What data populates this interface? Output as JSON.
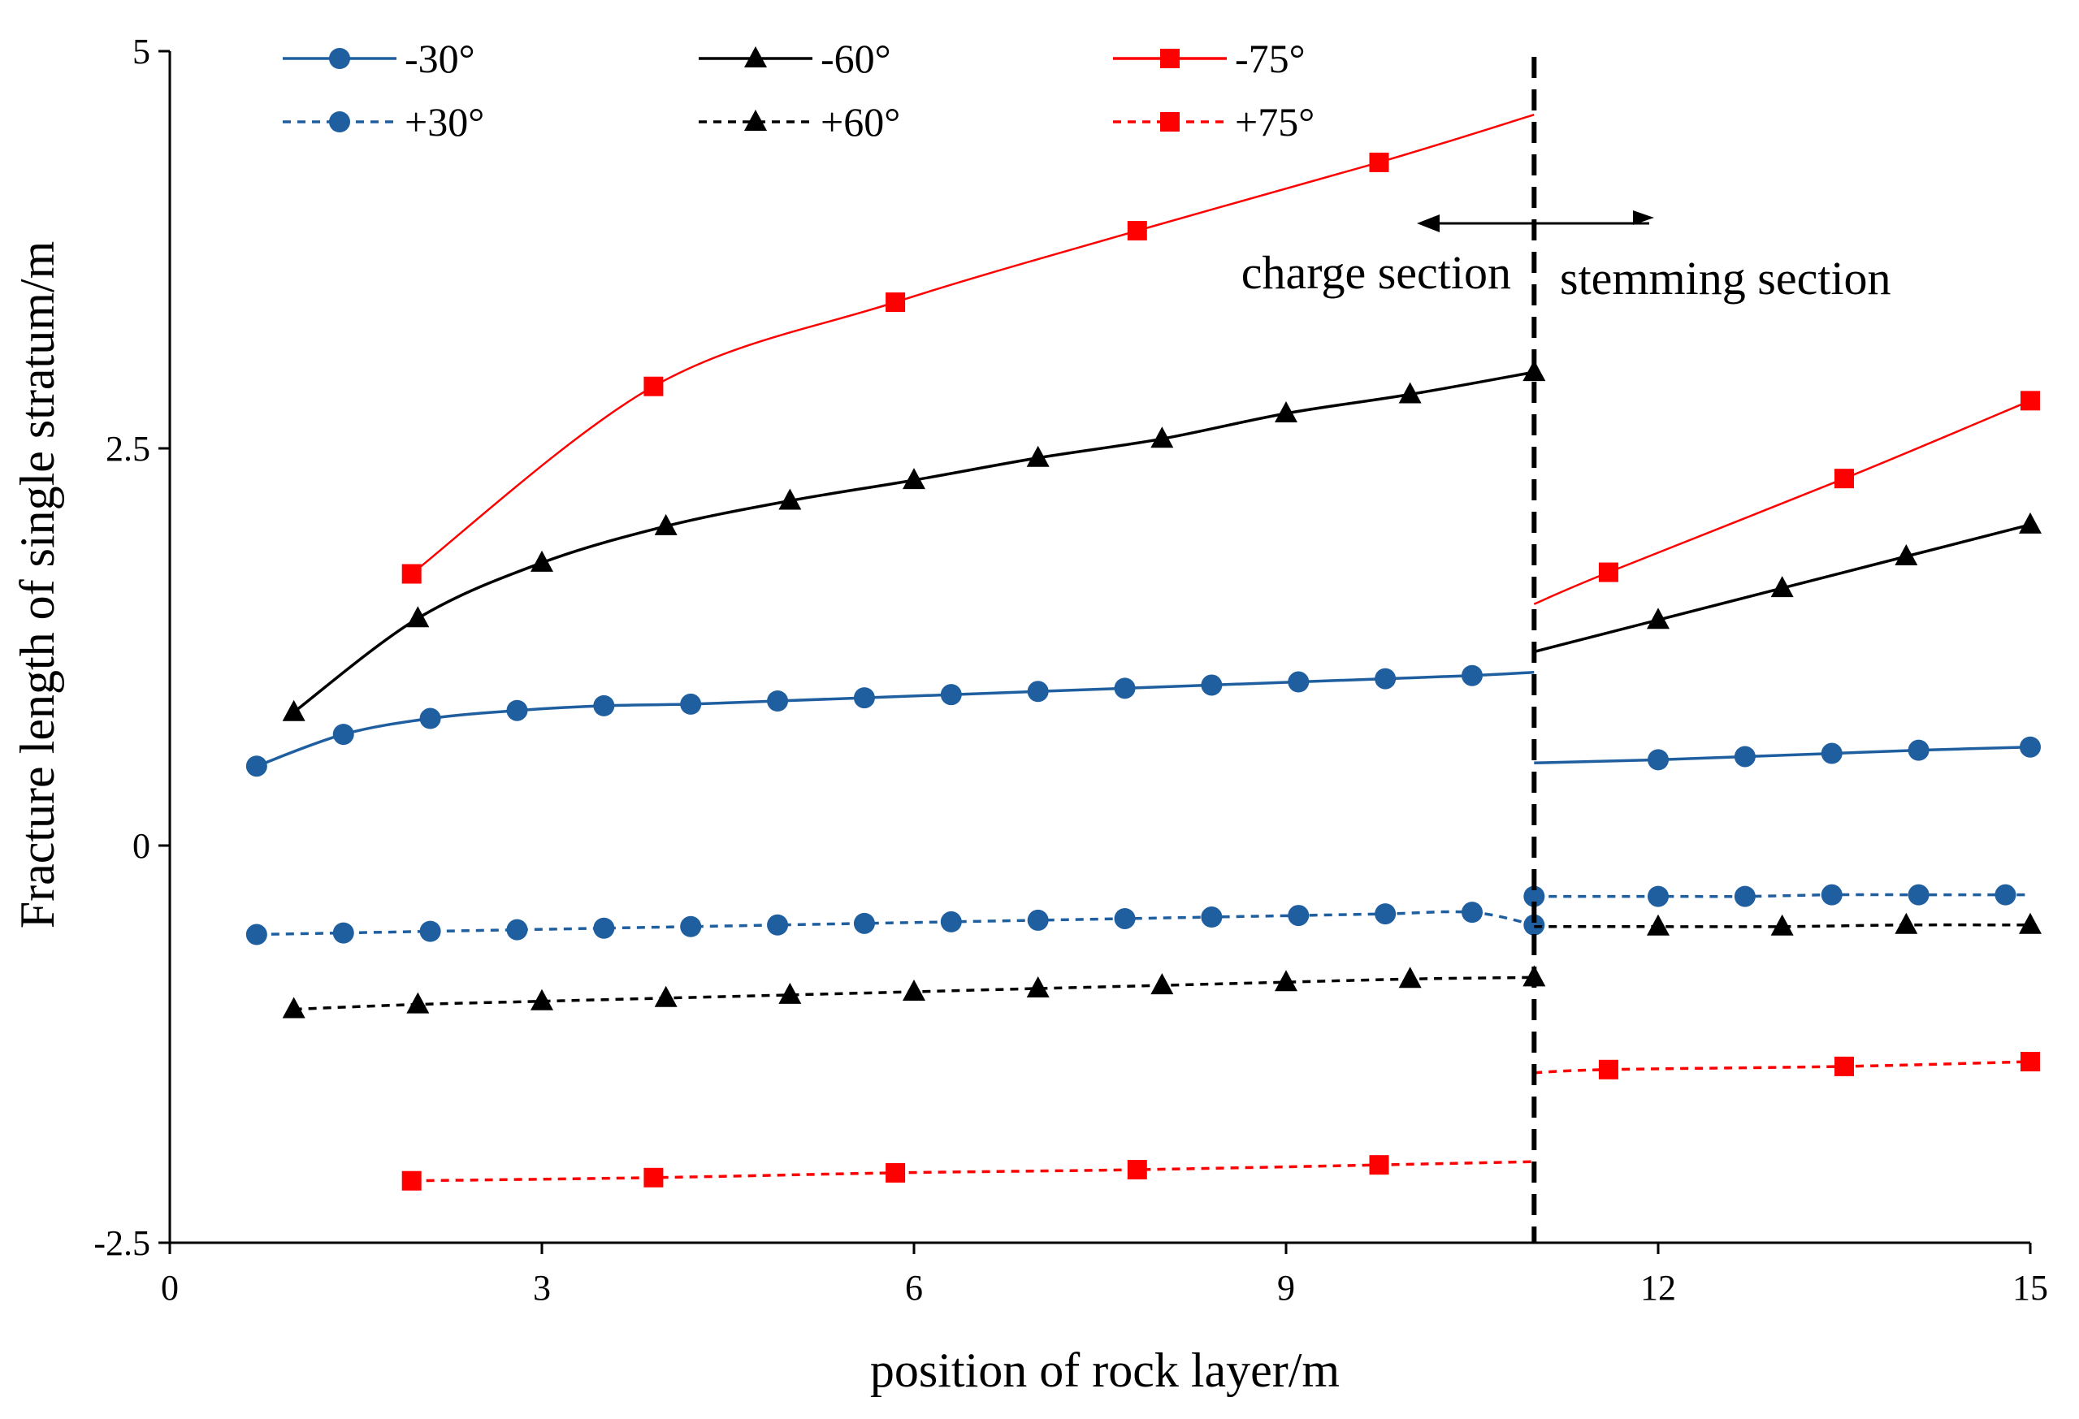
{
  "chart_data": {
    "type": "line",
    "title": "",
    "xlabel": "position of rock layer/m",
    "ylabel": "Fracture length of single stratum/m",
    "xlim": [
      0,
      15
    ],
    "ylim": [
      -2.5,
      5
    ],
    "x_ticks": [
      0,
      3,
      6,
      9,
      12,
      15
    ],
    "x_tick_labels": [
      "0",
      "3",
      "6",
      "9",
      "12",
      "15"
    ],
    "y_ticks": [
      -2.5,
      0,
      2.5,
      5
    ],
    "y_tick_labels": [
      "-2.5",
      "0",
      "2.5",
      "5"
    ],
    "grid": false,
    "legend_position": "top",
    "divider": {
      "x": 11,
      "style": "dashed"
    },
    "annotations": [
      {
        "text": "charge section",
        "arrow": "left"
      },
      {
        "text": "stemming section",
        "arrow": "right"
      }
    ],
    "series": [
      {
        "name": "-30°",
        "color": "#1f5fa0",
        "marker": "circle",
        "dash": false,
        "segments": [
          {
            "x": [
              0.7,
              1.4,
              2.1,
              2.8,
              3.5,
              4.2,
              4.9,
              5.6,
              6.3,
              7.0,
              7.7,
              8.4,
              9.1,
              9.8,
              10.5,
              11.0
            ],
            "y": [
              0.5,
              0.7,
              0.8,
              0.85,
              0.88,
              0.89,
              0.91,
              0.93,
              0.95,
              0.97,
              0.99,
              1.01,
              1.03,
              1.05,
              1.07,
              1.09
            ],
            "markers": [
              true,
              true,
              true,
              true,
              true,
              true,
              true,
              true,
              true,
              true,
              true,
              true,
              true,
              true,
              true,
              false
            ]
          },
          {
            "x": [
              11.0,
              12.0,
              12.7,
              13.4,
              14.1,
              15.0
            ],
            "y": [
              0.52,
              0.54,
              0.56,
              0.58,
              0.6,
              0.62
            ],
            "markers": [
              false,
              true,
              true,
              true,
              true,
              true
            ]
          }
        ]
      },
      {
        "name": "-60°",
        "color": "#000000",
        "marker": "triangle",
        "dash": false,
        "segments": [
          {
            "x": [
              1,
              2,
              3,
              4,
              5,
              6,
              7,
              8,
              9,
              10,
              11
            ],
            "y": [
              0.84,
              1.43,
              1.78,
              2.01,
              2.17,
              2.3,
              2.44,
              2.56,
              2.72,
              2.84,
              2.98
            ],
            "markers": [
              true,
              true,
              true,
              true,
              true,
              true,
              true,
              true,
              true,
              true,
              true
            ]
          },
          {
            "x": [
              11,
              12,
              13,
              14,
              15
            ],
            "y": [
              1.22,
              1.42,
              1.62,
              1.82,
              2.02
            ],
            "markers": [
              false,
              true,
              true,
              true,
              true
            ]
          }
        ]
      },
      {
        "name": "-75°",
        "color": "#ff0000",
        "marker": "square",
        "dash": false,
        "segments": [
          {
            "x": [
              1.95,
              3.9,
              5.85,
              7.8,
              9.75,
              11.0
            ],
            "y": [
              1.71,
              2.89,
              3.42,
              3.87,
              4.3,
              4.6
            ],
            "markers": [
              true,
              true,
              true,
              true,
              true,
              false
            ]
          },
          {
            "x": [
              11.0,
              11.6,
              13.5,
              15.0
            ],
            "y": [
              1.52,
              1.72,
              2.31,
              2.8
            ],
            "markers": [
              false,
              true,
              true,
              true
            ]
          }
        ]
      },
      {
        "name": "+30°",
        "color": "#1f5fa0",
        "marker": "circle",
        "dash": true,
        "segments": [
          {
            "x": [
              0.7,
              1.4,
              2.1,
              2.8,
              3.5,
              4.2,
              4.9,
              5.6,
              6.3,
              7.0,
              7.7,
              8.4,
              9.1,
              9.8,
              10.5,
              11.0
            ],
            "y": [
              -0.56,
              -0.55,
              -0.54,
              -0.53,
              -0.52,
              -0.51,
              -0.5,
              -0.49,
              -0.48,
              -0.47,
              -0.46,
              -0.45,
              -0.44,
              -0.43,
              -0.42,
              -0.5
            ],
            "markers": [
              true,
              true,
              true,
              true,
              true,
              true,
              true,
              true,
              true,
              true,
              true,
              true,
              true,
              true,
              true,
              true
            ]
          },
          {
            "x": [
              11.0,
              12.0,
              12.7,
              13.4,
              14.1,
              14.8,
              15.0
            ],
            "y": [
              -0.32,
              -0.32,
              -0.32,
              -0.31,
              -0.31,
              -0.31,
              -0.31
            ],
            "markers": [
              true,
              true,
              true,
              true,
              true,
              true,
              false
            ]
          }
        ]
      },
      {
        "name": "+60°",
        "color": "#000000",
        "marker": "triangle",
        "dash": true,
        "segments": [
          {
            "x": [
              1,
              2,
              3,
              4,
              5,
              6,
              7,
              8,
              9,
              10,
              11
            ],
            "y": [
              -1.03,
              -1.0,
              -0.98,
              -0.96,
              -0.94,
              -0.92,
              -0.9,
              -0.88,
              -0.86,
              -0.84,
              -0.83
            ],
            "markers": [
              true,
              true,
              true,
              true,
              true,
              true,
              true,
              true,
              true,
              true,
              true
            ]
          },
          {
            "x": [
              11,
              12,
              13,
              14,
              15
            ],
            "y": [
              -0.51,
              -0.51,
              -0.51,
              -0.5,
              -0.5
            ],
            "markers": [
              false,
              true,
              true,
              true,
              true
            ]
          }
        ]
      },
      {
        "name": "+75°",
        "color": "#ff0000",
        "marker": "square",
        "dash": true,
        "segments": [
          {
            "x": [
              1.95,
              3.9,
              5.85,
              7.8,
              9.75,
              11.0
            ],
            "y": [
              -2.11,
              -2.09,
              -2.06,
              -2.04,
              -2.01,
              -1.99
            ],
            "markers": [
              true,
              true,
              true,
              true,
              true,
              false
            ]
          },
          {
            "x": [
              11.0,
              11.6,
              13.5,
              15.0
            ],
            "y": [
              -1.43,
              -1.41,
              -1.39,
              -1.36
            ],
            "markers": [
              false,
              true,
              true,
              true
            ]
          }
        ]
      }
    ]
  }
}
